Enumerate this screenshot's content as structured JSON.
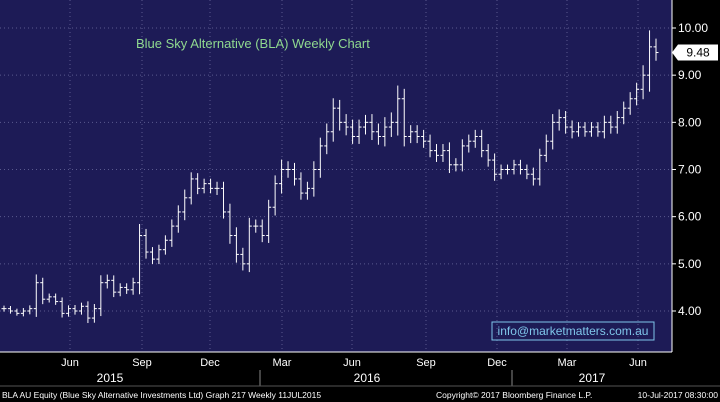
{
  "chart_data": {
    "type": "ohlc",
    "title": "Blue Sky Alternative (BLA) Weekly Chart",
    "watermark": "info@marketmatters.com.au",
    "last_price": "9.48",
    "ylim": [
      3.0,
      10.2
    ],
    "y_ticks": [
      "10.00",
      "9.00",
      "8.00",
      "7.00",
      "6.00",
      "5.00",
      "4.00"
    ],
    "month_ticks": [
      "Jun",
      "Sep",
      "Dec",
      "Mar",
      "Jun",
      "Sep",
      "Dec",
      "Mar",
      "Jun"
    ],
    "year_labels": [
      "2015",
      "2016",
      "2017"
    ],
    "footer_left": "BLA AU Equity (Blue Sky Alternative Investments Ltd) Graph 217  Weekly 11JUL2015",
    "footer_mid": "Copyright© 2017 Bloomberg Finance L.P.",
    "footer_right": "10-Jul-2017 08:30:00",
    "colors": {
      "plot_bg": "#1d1b56",
      "bars": "#ffffff",
      "grid": "#5a5a8e",
      "title": "#8fd88f",
      "watermark": "#7fc6ea",
      "axis_bg": "#000000",
      "axis_text": "#ffffff"
    },
    "closes": [
      4.05,
      4.0,
      3.95,
      4.0,
      4.05,
      4.6,
      4.25,
      4.3,
      4.2,
      3.95,
      4.05,
      4.0,
      4.1,
      3.85,
      4.05,
      4.6,
      4.65,
      4.4,
      4.5,
      4.45,
      4.6,
      5.6,
      5.25,
      5.1,
      5.3,
      5.5,
      5.8,
      6.1,
      6.4,
      6.8,
      6.6,
      6.7,
      6.6,
      6.6,
      6.1,
      5.6,
      5.2,
      5.0,
      5.8,
      5.8,
      5.6,
      6.2,
      6.7,
      7.0,
      7.0,
      6.8,
      6.5,
      6.6,
      7.0,
      7.5,
      7.8,
      8.3,
      8.0,
      7.9,
      7.7,
      7.9,
      8.0,
      7.8,
      7.7,
      7.9,
      8.0,
      8.5,
      7.7,
      7.8,
      7.7,
      7.6,
      7.4,
      7.3,
      7.4,
      7.1,
      7.1,
      7.5,
      7.6,
      7.7,
      7.4,
      7.2,
      6.9,
      7.0,
      7.0,
      7.1,
      7.0,
      6.9,
      6.8,
      7.3,
      7.6,
      8.0,
      8.1,
      7.9,
      7.8,
      7.9,
      7.8,
      7.9,
      7.8,
      8.0,
      7.9,
      8.1,
      8.3,
      8.5,
      8.7,
      9.0,
      9.6,
      9.48
    ],
    "ranges": [
      0.18,
      0.16,
      0.14,
      0.18,
      0.2,
      0.5,
      0.3,
      0.2,
      0.2,
      0.25,
      0.2,
      0.22,
      0.22,
      0.3,
      0.28,
      0.45,
      0.35,
      0.3,
      0.25,
      0.25,
      0.3,
      0.7,
      0.4,
      0.3,
      0.3,
      0.3,
      0.4,
      0.4,
      0.5,
      0.4,
      0.35,
      0.3,
      0.3,
      0.4,
      0.4,
      0.5,
      0.5,
      0.4,
      0.5,
      0.4,
      0.4,
      0.45,
      0.5,
      0.6,
      0.5,
      0.4,
      0.4,
      0.4,
      0.5,
      0.5,
      0.5,
      0.6,
      0.5,
      0.5,
      0.45,
      0.45,
      0.45,
      0.5,
      0.5,
      0.6,
      0.6,
      0.8,
      0.6,
      0.4,
      0.4,
      0.4,
      0.4,
      0.4,
      0.4,
      0.5,
      0.4,
      0.4,
      0.4,
      0.4,
      0.4,
      0.4,
      0.4,
      0.3,
      0.3,
      0.3,
      0.3,
      0.3,
      0.4,
      0.4,
      0.4,
      0.5,
      0.5,
      0.4,
      0.4,
      0.3,
      0.3,
      0.3,
      0.3,
      0.4,
      0.4,
      0.4,
      0.4,
      0.4,
      0.4,
      0.6,
      1.0,
      0.5
    ]
  }
}
